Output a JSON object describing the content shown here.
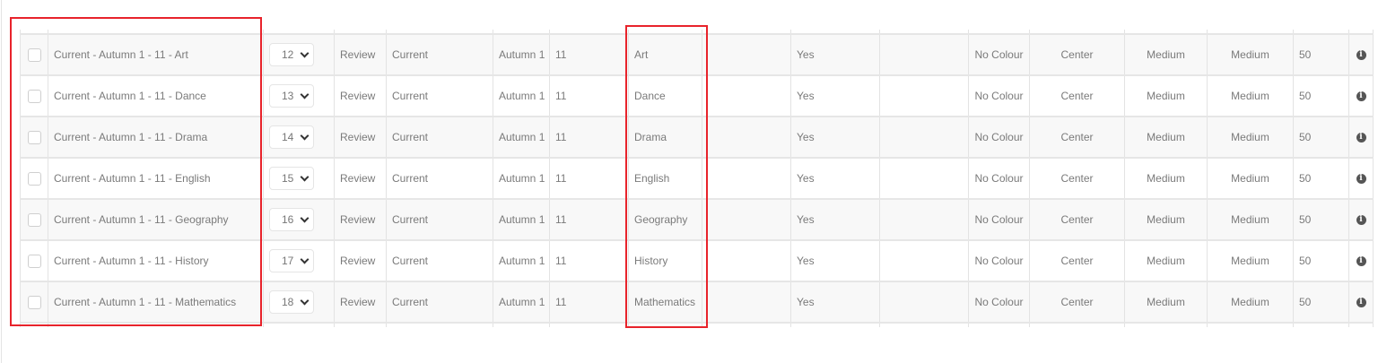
{
  "highlight_color": "#e8232b",
  "rows": [
    {
      "name": "Current - Autumn 1 - 11 - Art",
      "order": "12",
      "type": "Review",
      "period": "Current",
      "term": "Autumn 1",
      "year": "11",
      "subject": "Art",
      "col8": "",
      "flag": "Yes",
      "col10": "",
      "colour": "No Colour",
      "align": "Center",
      "size1": "Medium",
      "size2": "Medium",
      "value": "50"
    },
    {
      "name": "Current - Autumn 1 - 11 - Dance",
      "order": "13",
      "type": "Review",
      "period": "Current",
      "term": "Autumn 1",
      "year": "11",
      "subject": "Dance",
      "col8": "",
      "flag": "Yes",
      "col10": "",
      "colour": "No Colour",
      "align": "Center",
      "size1": "Medium",
      "size2": "Medium",
      "value": "50"
    },
    {
      "name": "Current - Autumn 1 - 11 - Drama",
      "order": "14",
      "type": "Review",
      "period": "Current",
      "term": "Autumn 1",
      "year": "11",
      "subject": "Drama",
      "col8": "",
      "flag": "Yes",
      "col10": "",
      "colour": "No Colour",
      "align": "Center",
      "size1": "Medium",
      "size2": "Medium",
      "value": "50"
    },
    {
      "name": "Current - Autumn 1 - 11 - English",
      "order": "15",
      "type": "Review",
      "period": "Current",
      "term": "Autumn 1",
      "year": "11",
      "subject": "English",
      "col8": "",
      "flag": "Yes",
      "col10": "",
      "colour": "No Colour",
      "align": "Center",
      "size1": "Medium",
      "size2": "Medium",
      "value": "50"
    },
    {
      "name": "Current - Autumn 1 - 11 - Geography",
      "order": "16",
      "type": "Review",
      "period": "Current",
      "term": "Autumn 1",
      "year": "11",
      "subject": "Geography",
      "col8": "",
      "flag": "Yes",
      "col10": "",
      "colour": "No Colour",
      "align": "Center",
      "size1": "Medium",
      "size2": "Medium",
      "value": "50"
    },
    {
      "name": "Current - Autumn 1 - 11 - History",
      "order": "17",
      "type": "Review",
      "period": "Current",
      "term": "Autumn 1",
      "year": "11",
      "subject": "History",
      "col8": "",
      "flag": "Yes",
      "col10": "",
      "colour": "No Colour",
      "align": "Center",
      "size1": "Medium",
      "size2": "Medium",
      "value": "50"
    },
    {
      "name": "Current - Autumn 1 - 11 - Mathematics",
      "order": "18",
      "type": "Review",
      "period": "Current",
      "term": "Autumn 1",
      "year": "11",
      "subject": "Mathematics",
      "col8": "",
      "flag": "Yes",
      "col10": "",
      "colour": "No Colour",
      "align": "Center",
      "size1": "Medium",
      "size2": "Medium",
      "value": "50"
    }
  ],
  "icons": {
    "row_action": "info-icon",
    "select": "chevron-down-icon"
  }
}
